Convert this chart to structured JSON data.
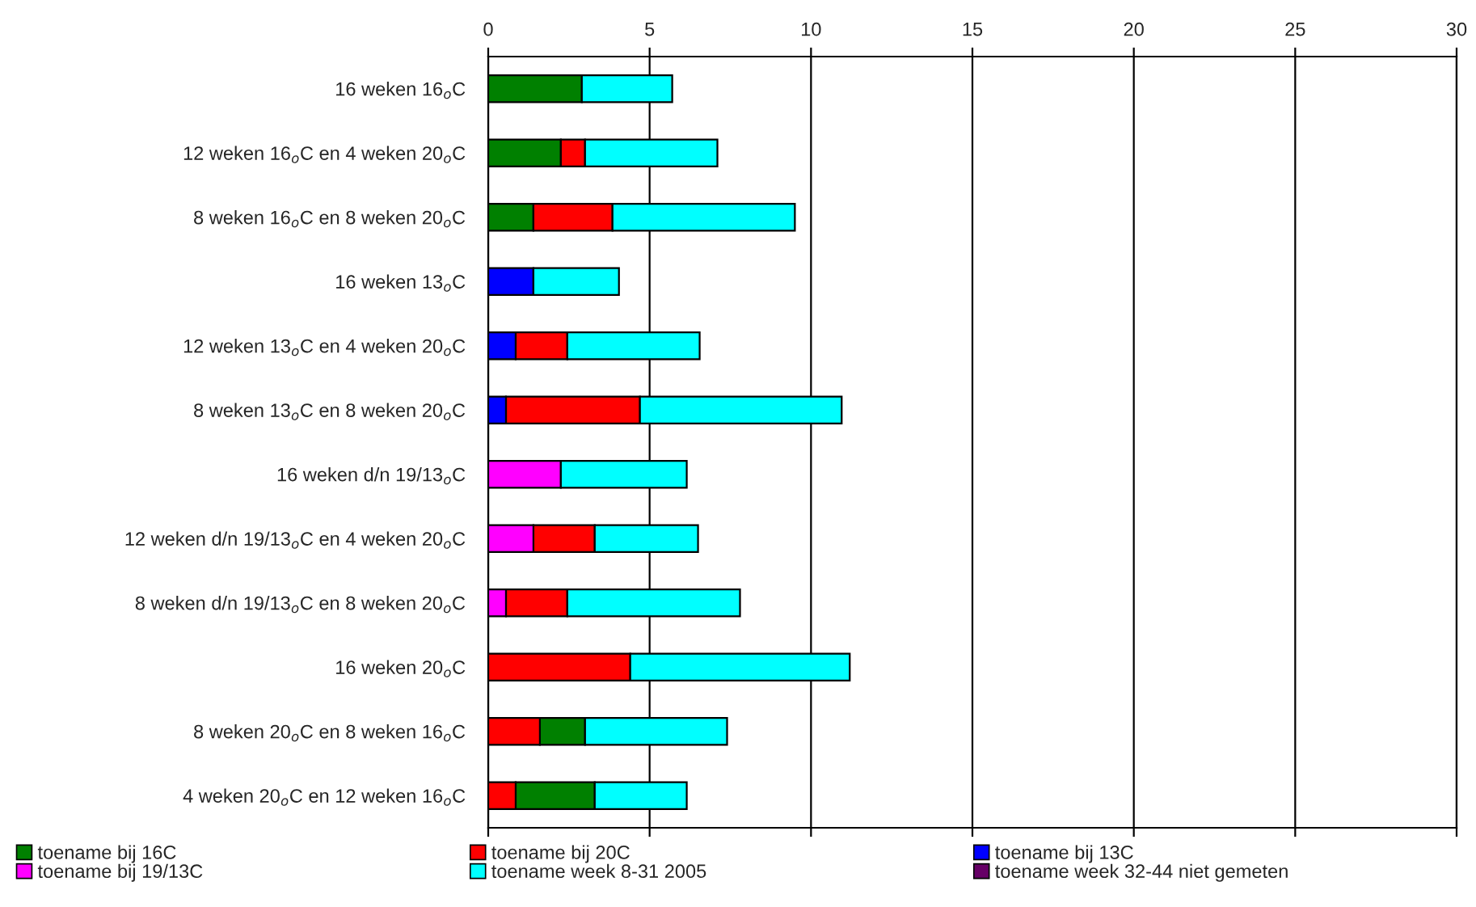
{
  "chart_data": {
    "type": "bar",
    "orientation": "horizontal",
    "categories": [
      "16 weken 16$_{o}$C",
      "12 weken 16$_{o}$C en 4 weken 20$_{o}$C",
      "8 weken 16$_{o}$C en 8 weken 20$_{o}$C",
      "16 weken 13$_{o}$C",
      "12 weken 13$_{o}$C en 4 weken 20$_{o}$C",
      "8 weken 13$_{o}$C en 8 weken 20$_{o}$C",
      "16 weken d/n 19/13$_{o}$C",
      "12 weken d/n 19/13$_{o}$C en 4 weken 20$_{o}$C",
      "8 weken d/n 19/13$_{o}$C en 8 weken 20$_{o}$C",
      "16 weken 20$_{o}$C",
      "8 weken 20$_{o}$C en 8 weken 16$_{o}$C",
      "4 weken 20$_{o}$C en 12 weken 16$_{o}$C"
    ],
    "series": [
      {
        "name": "toename bij 16C",
        "color": "#008000",
        "values": [
          2.9,
          2.25,
          1.4,
          null,
          null,
          null,
          null,
          null,
          null,
          null,
          1.4,
          2.45
        ],
        "base": [
          0,
          0,
          0,
          null,
          null,
          null,
          null,
          null,
          null,
          null,
          1.6,
          0.85
        ]
      },
      {
        "name": "toename bij 20C",
        "color": "#ff0000",
        "values": [
          null,
          0.75,
          2.45,
          null,
          1.6,
          4.15,
          null,
          1.9,
          1.9,
          4.4,
          1.6,
          0.85
        ],
        "base": [
          null,
          2.25,
          1.4,
          null,
          0.85,
          0.55,
          null,
          1.4,
          0.55,
          0,
          0,
          0
        ]
      },
      {
        "name": "toename bij 13C",
        "color": "#0000ff",
        "values": [
          null,
          null,
          null,
          1.4,
          0.85,
          0.55,
          null,
          null,
          null,
          null,
          null,
          null
        ],
        "base": [
          null,
          null,
          null,
          0,
          0,
          0,
          null,
          null,
          null,
          null,
          null,
          null
        ]
      },
      {
        "name": "toename bij 19/13C",
        "color": "#ff00ff",
        "values": [
          null,
          null,
          null,
          null,
          null,
          null,
          2.25,
          1.4,
          0.55,
          null,
          null,
          null
        ],
        "base": [
          null,
          null,
          null,
          null,
          null,
          null,
          0,
          0,
          0,
          null,
          null,
          null
        ]
      },
      {
        "name": "toename week 8-31 2005",
        "color": "#00ffff",
        "values": [
          2.8,
          4.1,
          5.65,
          2.65,
          4.1,
          6.25,
          3.9,
          3.2,
          5.35,
          6.8,
          4.4,
          2.85
        ],
        "base": [
          2.9,
          3.0,
          3.85,
          1.4,
          2.45,
          4.7,
          2.25,
          3.3,
          2.45,
          4.4,
          3.0,
          3.3
        ]
      },
      {
        "name": "toename week 32-44 niet gemeten",
        "color": "#660066",
        "values": [
          null,
          null,
          null,
          null,
          null,
          null,
          null,
          null,
          null,
          null,
          null,
          null
        ]
      }
    ],
    "xlim": [
      0,
      30
    ],
    "xticks": [
      0,
      5,
      10,
      15,
      20,
      25,
      30
    ],
    "grid": "x",
    "legend": "bottom"
  }
}
